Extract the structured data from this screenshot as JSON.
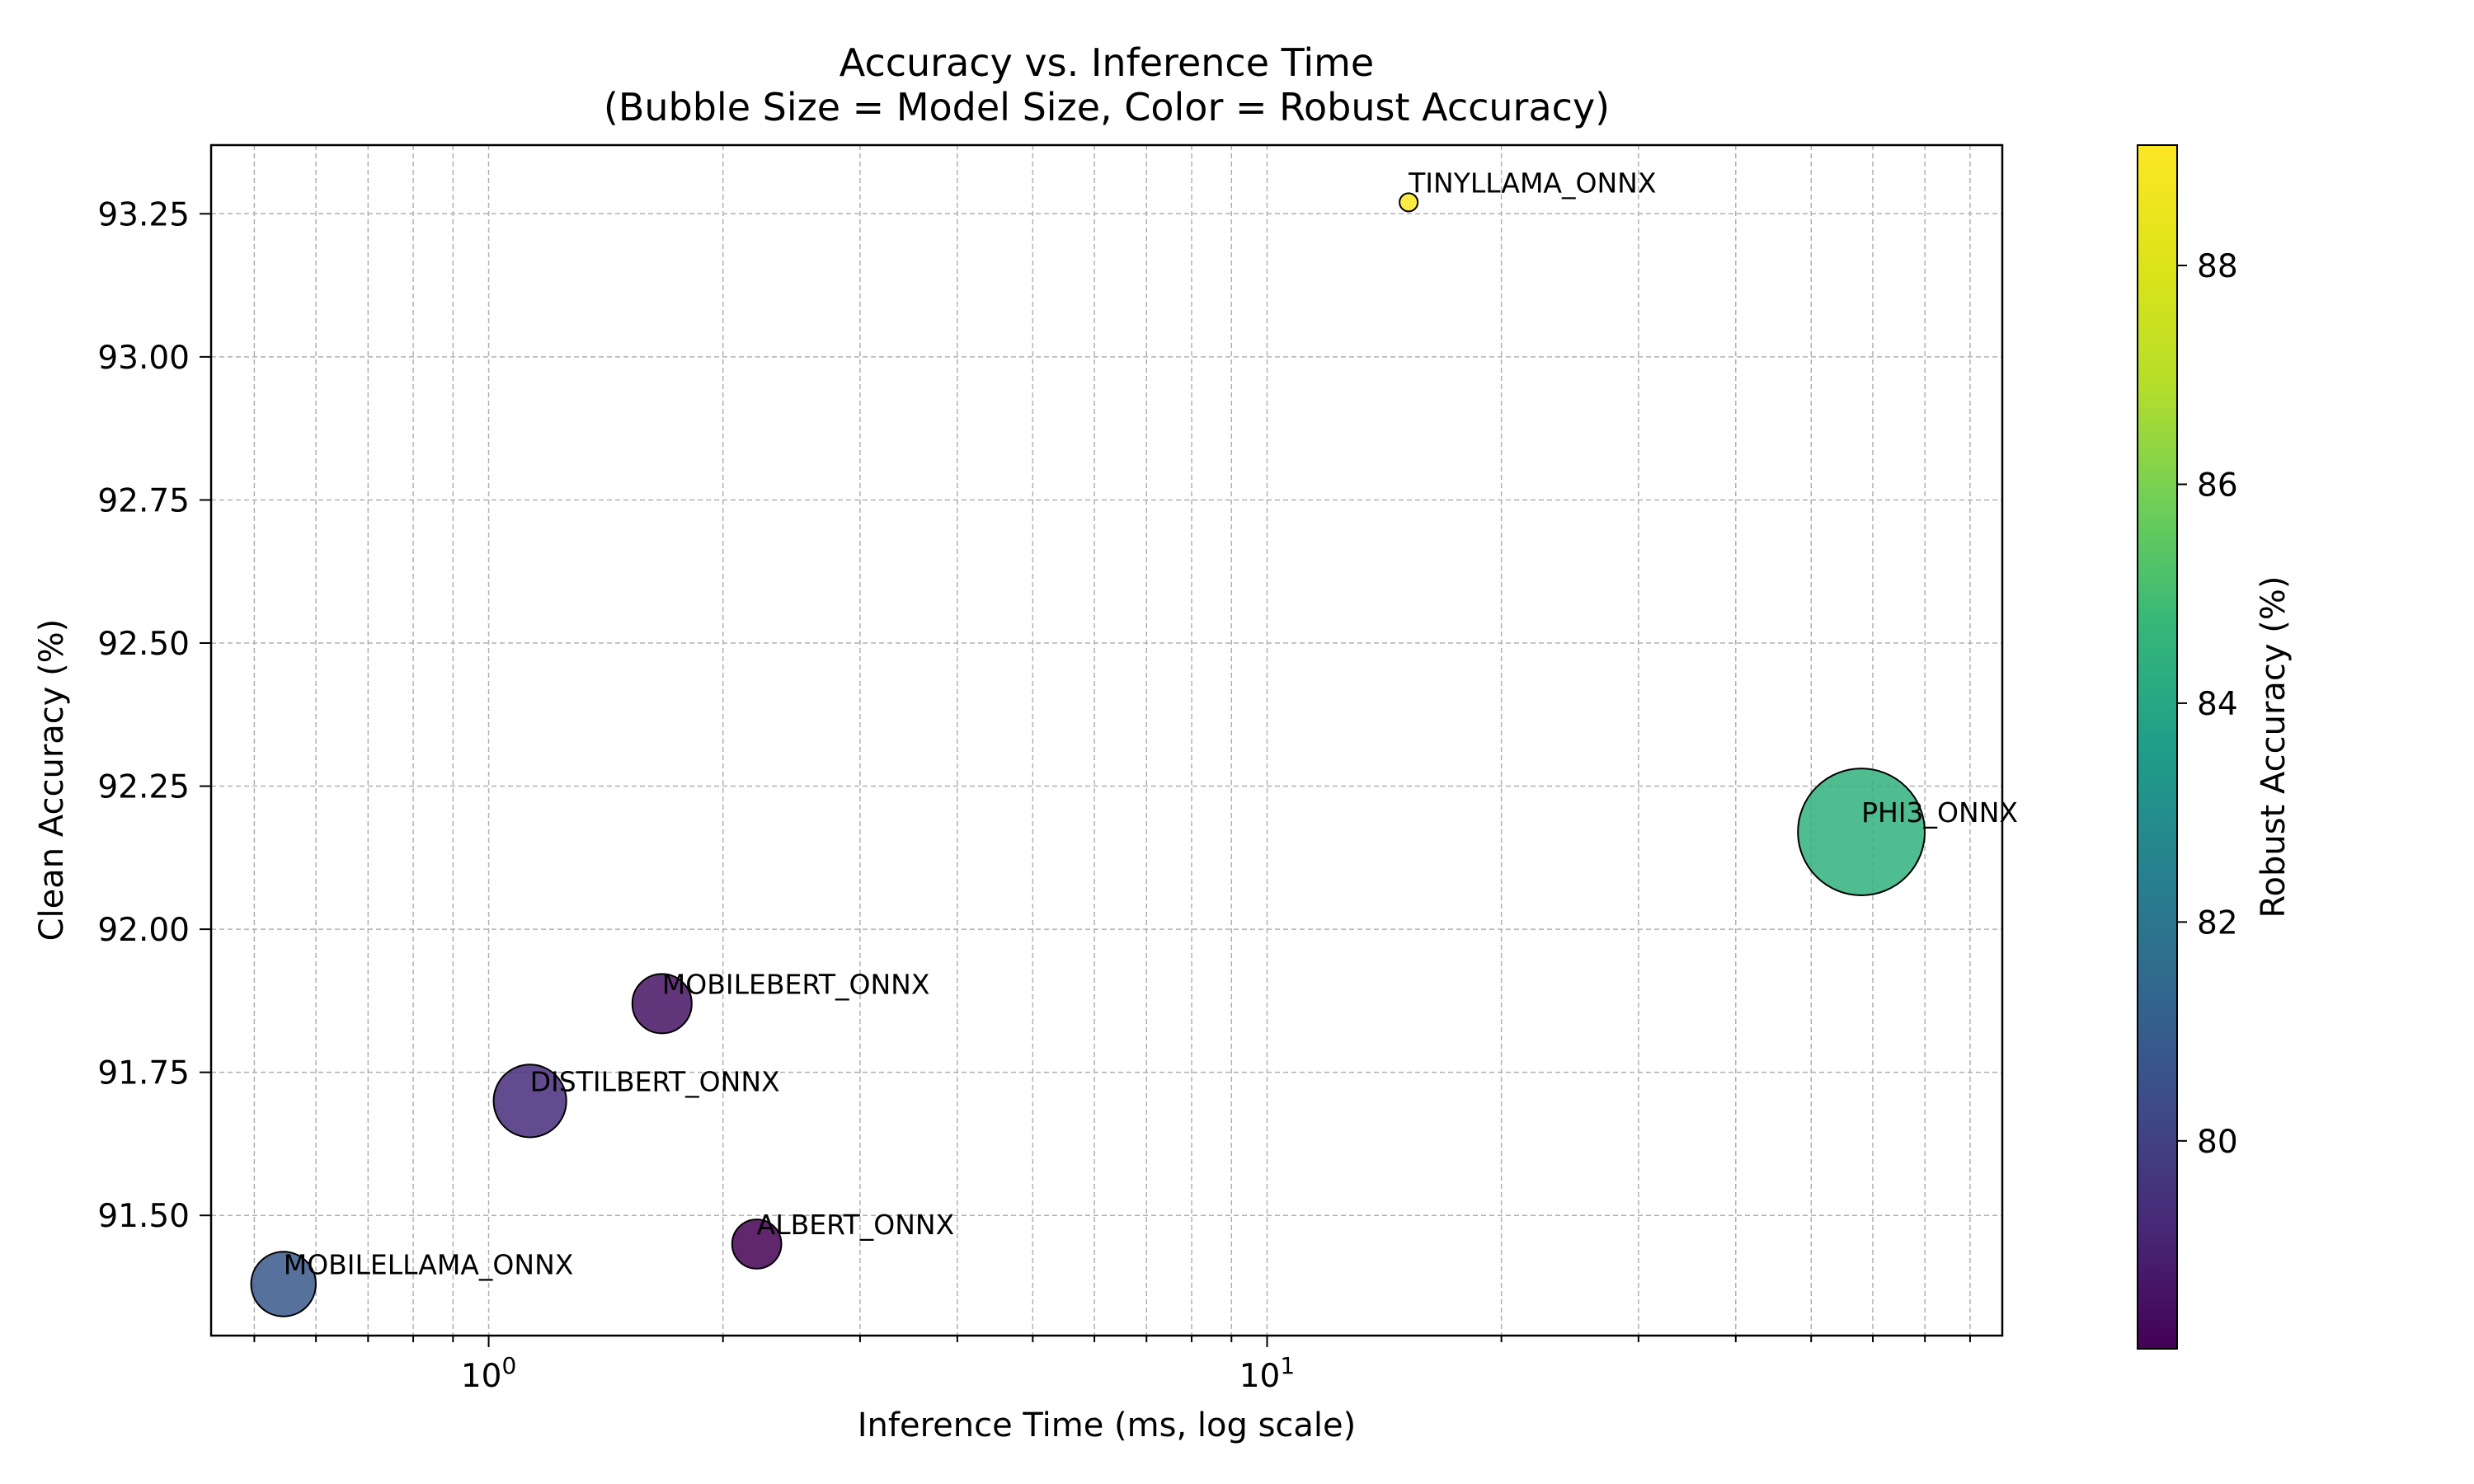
{
  "chart_data": {
    "type": "scatter",
    "title": "Accuracy vs. Inference Time",
    "subtitle": "(Bubble Size = Model Size, Color = Robust Accuracy)",
    "xlabel": "Inference Time (ms, log scale)",
    "ylabel": "Clean Accuracy (%)",
    "colorbar_label": "Robust Accuracy (%)",
    "x_scale": "log",
    "xlim": [
      0.44,
      88
    ],
    "ylim": [
      91.29,
      93.37
    ],
    "x_ticks": [
      {
        "value": 1,
        "label": "10",
        "exp": "0"
      },
      {
        "value": 10,
        "label": "10",
        "exp": "1"
      }
    ],
    "y_ticks": [
      "91.50",
      "91.75",
      "92.00",
      "92.25",
      "92.50",
      "92.75",
      "93.00",
      "93.25"
    ],
    "colorbar": {
      "colormap": "viridis",
      "range": [
        78.1,
        89.1
      ],
      "ticks": [
        "80",
        "82",
        "84",
        "86",
        "88"
      ]
    },
    "grid": true,
    "points": [
      {
        "name": "TINYLLAMA_ONNX",
        "x": 15.2,
        "y": 93.27,
        "robust": 89.1,
        "size_rel": 1.5
      },
      {
        "name": "PHI3_ONNX",
        "x": 58.0,
        "y": 92.17,
        "robust": 84.5,
        "size_rel": 73
      },
      {
        "name": "MOBILEBERT_ONNX",
        "x": 1.67,
        "y": 91.87,
        "robust": 78.6,
        "size_rel": 16
      },
      {
        "name": "DISTILBERT_ONNX",
        "x": 1.13,
        "y": 91.7,
        "robust": 79.3,
        "size_rel": 24
      },
      {
        "name": "ALBERT_ONNX",
        "x": 2.21,
        "y": 91.45,
        "robust": 78.1,
        "size_rel": 11
      },
      {
        "name": "MOBILELLAMA_ONNX",
        "x": 0.545,
        "y": 91.38,
        "robust": 80.8,
        "size_rel": 19
      }
    ]
  }
}
